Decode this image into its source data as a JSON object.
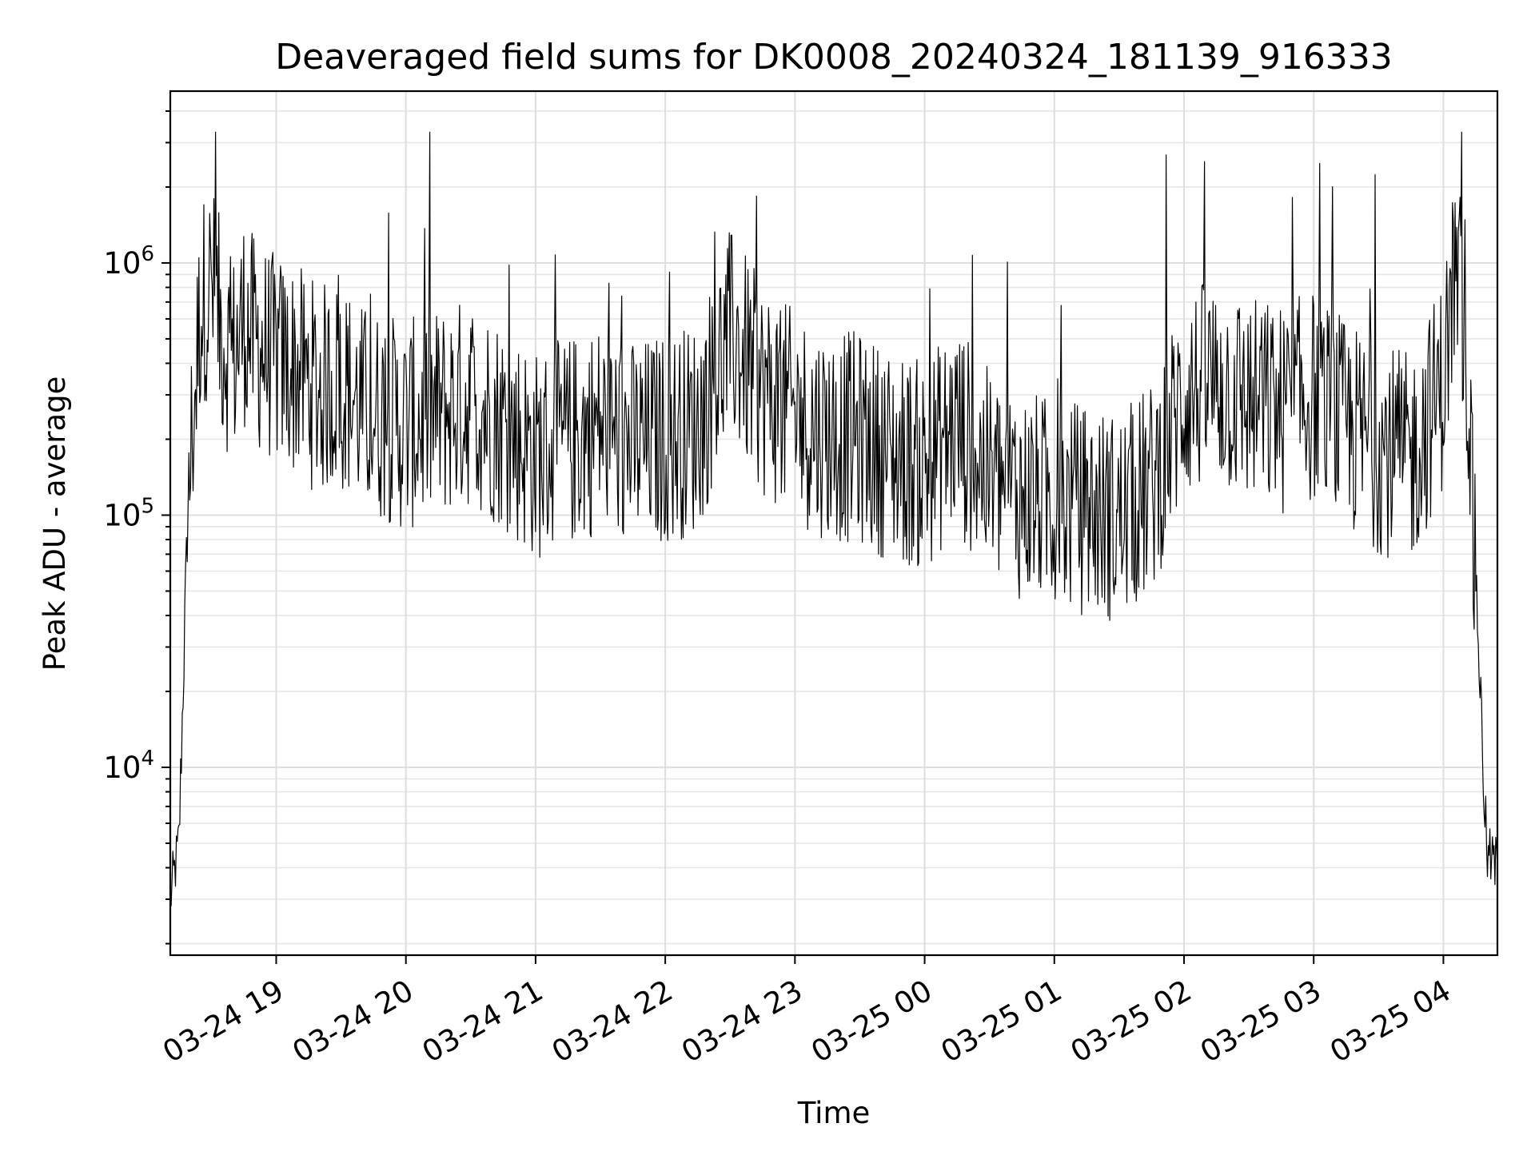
{
  "chart_data": {
    "type": "line",
    "title": "Deaveraged field sums for DK0008_20240324_181139_916333",
    "xlabel": "Time",
    "ylabel": "Peak ADU - average",
    "yscale": "log",
    "ylim": [
      1800,
      4800000
    ],
    "xlim": [
      "03-24 18:11",
      "03-25 04:25"
    ],
    "x_ticks": [
      "03-24 19",
      "03-24 20",
      "03-24 21",
      "03-24 22",
      "03-24 23",
      "03-25 00",
      "03-25 01",
      "03-25 02",
      "03-25 03",
      "03-25 04"
    ],
    "y_ticks": [
      {
        "base": "10",
        "exp": "4",
        "value": 10000
      },
      {
        "base": "10",
        "exp": "5",
        "value": 100000
      },
      {
        "base": "10",
        "exp": "6",
        "value": 1000000
      }
    ],
    "grid": true,
    "legend": "none",
    "line_color": "#000000",
    "series": [
      {
        "x": [
          "03-24 18:11",
          "03-24 18:15",
          "03-24 18:20",
          "03-24 18:25",
          "03-24 18:30",
          "03-24 18:35",
          "03-24 18:40",
          "03-24 18:45",
          "03-24 18:50",
          "03-24 18:55",
          "03-24 19:00",
          "03-24 19:10",
          "03-24 19:20",
          "03-24 19:30",
          "03-24 19:40",
          "03-24 19:50",
          "03-24 20:00",
          "03-24 20:15",
          "03-24 20:30",
          "03-24 20:45",
          "03-24 21:00",
          "03-24 21:15",
          "03-24 21:30",
          "03-24 21:45",
          "03-24 22:00",
          "03-24 22:15",
          "03-24 22:30",
          "03-24 22:45",
          "03-24 23:00",
          "03-24 23:15",
          "03-24 23:30",
          "03-24 23:45",
          "03-25 00:00",
          "03-25 00:15",
          "03-25 00:30",
          "03-25 00:45",
          "03-25 01:00",
          "03-25 01:15",
          "03-25 01:30",
          "03-25 01:45",
          "03-25 02:00",
          "03-25 02:15",
          "03-25 02:30",
          "03-25 02:45",
          "03-25 03:00",
          "03-25 03:15",
          "03-25 03:30",
          "03-25 03:45",
          "03-25 04:00",
          "03-25 04:05",
          "03-25 04:10",
          "03-25 04:15",
          "03-25 04:20",
          "03-25 04:25"
        ],
        "y": [
          3000,
          5000,
          200000,
          900000,
          1100000,
          700000,
          550000,
          800000,
          650000,
          600000,
          550000,
          500000,
          420000,
          450000,
          350000,
          330000,
          300000,
          340000,
          380000,
          310000,
          230000,
          260000,
          300000,
          250000,
          270000,
          300000,
          700000,
          420000,
          330000,
          280000,
          270000,
          230000,
          210000,
          300000,
          190000,
          160000,
          150000,
          140000,
          130000,
          170000,
          400000,
          450000,
          380000,
          350000,
          400000,
          300000,
          250000,
          220000,
          450000,
          1200000,
          900000,
          60000,
          4500,
          4000
        ]
      }
    ]
  }
}
